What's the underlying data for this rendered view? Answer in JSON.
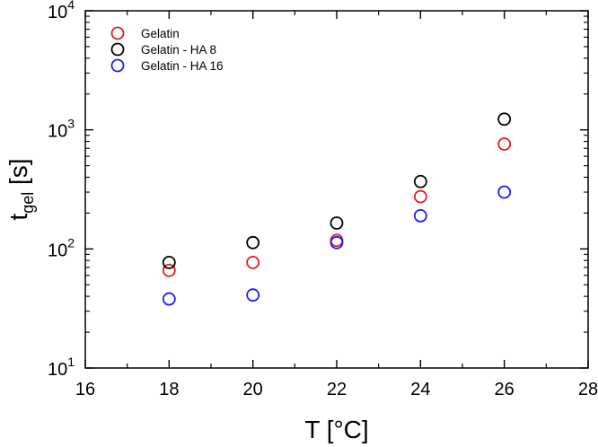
{
  "chart_data": {
    "type": "scatter",
    "title": "",
    "xlabel": "T [°C]",
    "ylabel": {
      "main": "t",
      "sub": "gel",
      "unit": " [s]"
    },
    "xlim": [
      16,
      28
    ],
    "ylim": [
      10,
      10000
    ],
    "yscale": "log",
    "grid": false,
    "legend_position": "top-left",
    "x_ticks": [
      16,
      18,
      20,
      22,
      24,
      26,
      28
    ],
    "y_ticks": [
      {
        "value": 10,
        "base": "10",
        "exp": "1"
      },
      {
        "value": 100,
        "base": "10",
        "exp": "2"
      },
      {
        "value": 1000,
        "base": "10",
        "exp": "3"
      },
      {
        "value": 10000,
        "base": "10",
        "exp": "4"
      }
    ],
    "series": [
      {
        "name": "Gelatin",
        "color": "#e8191c",
        "marker": "open-circle",
        "x": [
          18,
          20,
          22,
          24,
          26
        ],
        "y": [
          66,
          77,
          118,
          275,
          760
        ]
      },
      {
        "name": "Gelatin - HA 8",
        "color": "#000000",
        "marker": "open-circle",
        "x": [
          18,
          20,
          22,
          24,
          26
        ],
        "y": [
          77,
          113,
          165,
          368,
          1230
        ]
      },
      {
        "name": "Gelatin - HA 16",
        "color": "#1a1aff",
        "marker": "open-circle",
        "x": [
          18,
          20,
          22,
          24,
          26
        ],
        "y": [
          38,
          41,
          113,
          190,
          300
        ]
      }
    ]
  }
}
